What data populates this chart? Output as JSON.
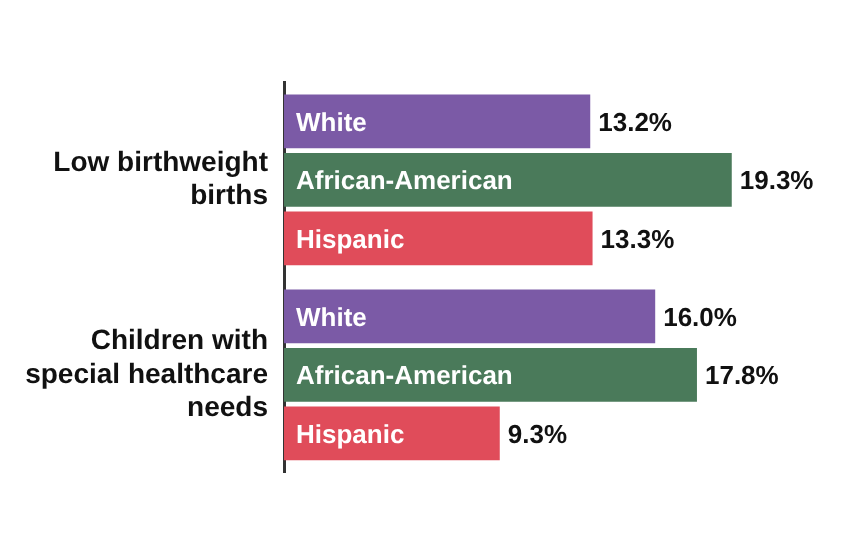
{
  "chart_data": {
    "type": "bar",
    "orientation": "horizontal",
    "categories": [
      "Low birthweight births",
      "Children with special healthcare needs"
    ],
    "series": [
      {
        "name": "White",
        "color": "#7b5aa6",
        "values": [
          13.2,
          16.0
        ],
        "value_labels": [
          "13.2%",
          "16.0%"
        ]
      },
      {
        "name": "African-American",
        "color": "#4a7a5a",
        "values": [
          19.3,
          17.8
        ],
        "value_labels": [
          "19.3%",
          "17.8%"
        ]
      },
      {
        "name": "Hispanic",
        "color": "#e04c5a",
        "values": [
          13.3,
          9.3
        ],
        "value_labels": [
          "13.3%",
          "9.3%"
        ]
      }
    ],
    "legend": false,
    "grid": false
  }
}
